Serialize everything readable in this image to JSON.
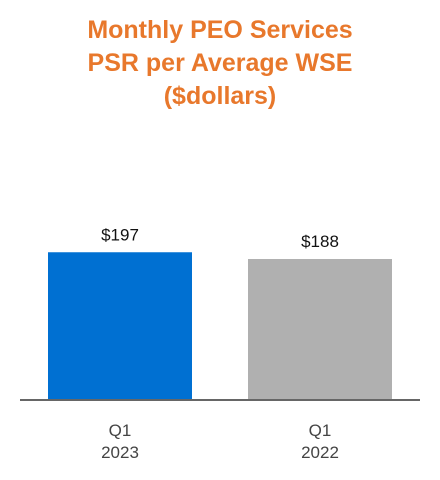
{
  "chart_data": {
    "type": "bar",
    "title_lines": [
      "Monthly PEO Services",
      "PSR per Average WSE",
      "($dollars)"
    ],
    "categories": [
      {
        "line1": "Q1",
        "line2": "2023"
      },
      {
        "line1": "Q1",
        "line2": "2022"
      }
    ],
    "values": [
      197,
      188
    ],
    "value_labels": [
      "$197",
      "$188"
    ],
    "colors": [
      "#0070D2",
      "#B0B0B0"
    ],
    "axis_color": "#666666",
    "ylim": [
      0,
      220
    ],
    "grid": false,
    "legend": "none"
  }
}
